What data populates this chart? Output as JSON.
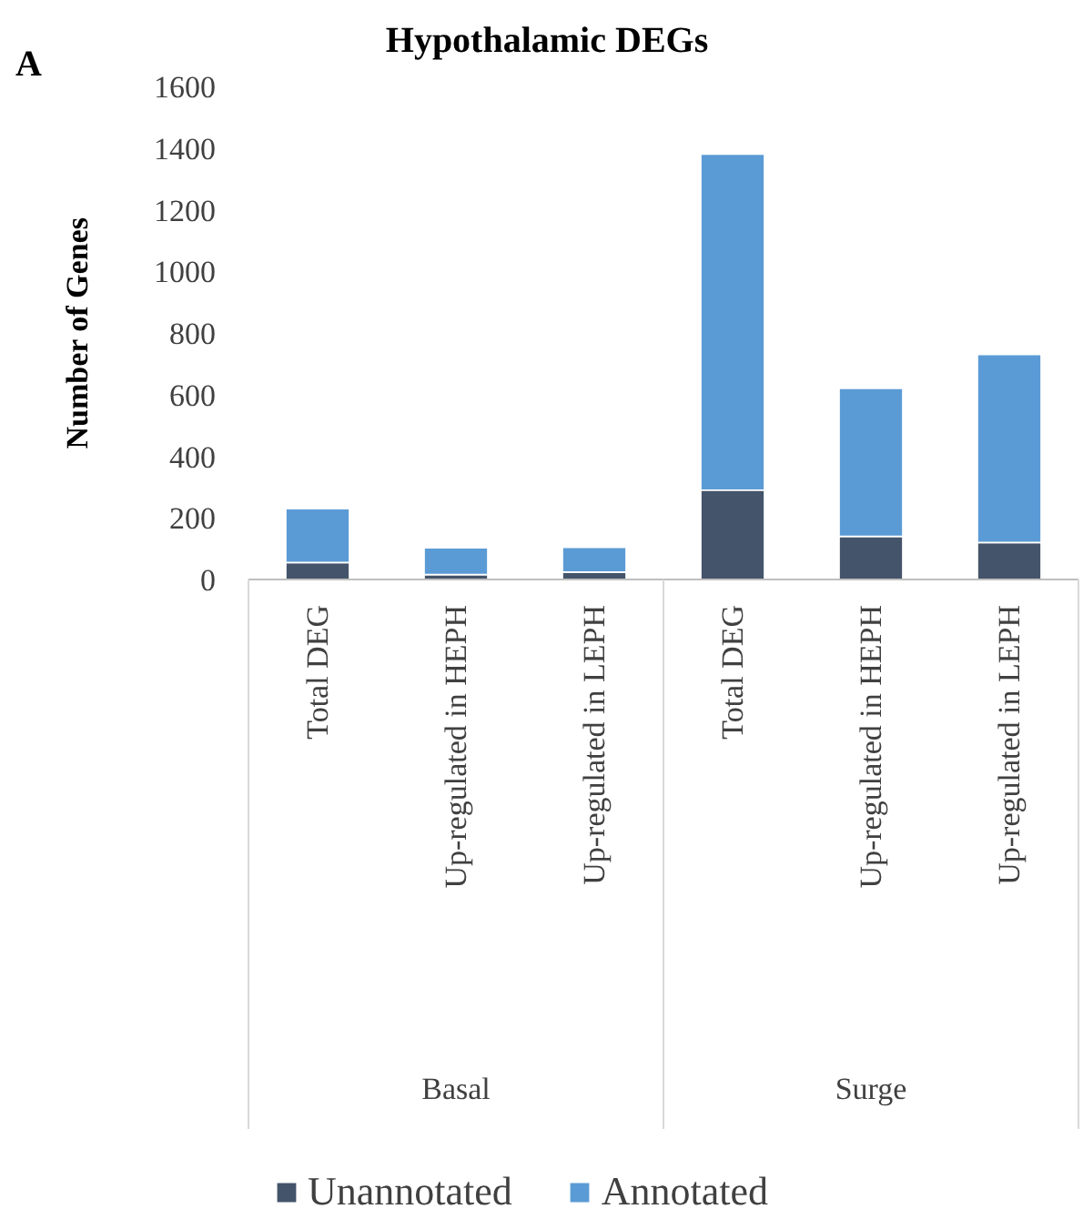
{
  "chart_data": {
    "type": "bar",
    "title": "Hypothalamic DEGs",
    "ylabel": "Number of Genes",
    "categories": [
      "Total DEG",
      "Up-regulated in HEPH",
      "Up-regulated in LEPH",
      "Total DEG",
      "Up-regulated in HEPH",
      "Up-regulated in LEPH"
    ],
    "series": [
      {
        "name": "Unannotated",
        "color": "#44546a",
        "values": [
          55,
          16,
          24,
          290,
          140,
          120
        ]
      },
      {
        "name": "Annotated",
        "color": "#5b9bd5",
        "values": [
          175,
          87,
          80,
          1090,
          480,
          610
        ]
      }
    ],
    "stacked": true,
    "ylim": [
      0,
      1600
    ],
    "yticks": [
      0,
      200,
      400,
      600,
      800,
      1000,
      1200,
      1400,
      1600
    ],
    "grid": false,
    "legend": "bottom",
    "annotations": [
      "A",
      "Basal",
      "Surge"
    ]
  }
}
